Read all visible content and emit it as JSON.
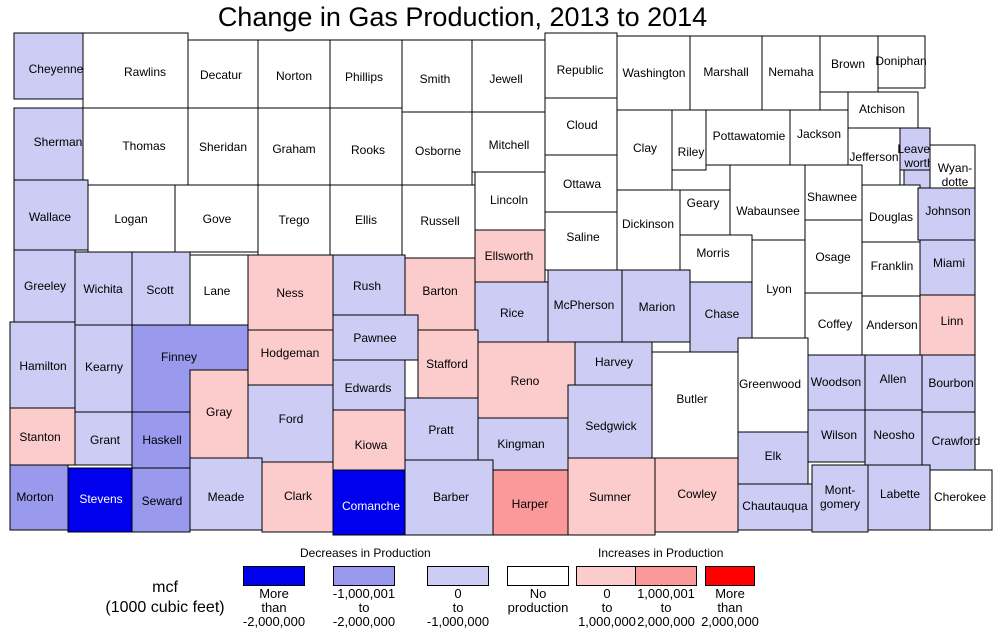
{
  "title": "Change in Gas Production, 2013 to 2014",
  "legend": {
    "decreases_heading": "Decreases in Production",
    "increases_heading": "Increases in Production",
    "unit_line1": "mcf",
    "unit_line2": "(1000 cubic feet)",
    "categories": [
      {
        "key": "dec_large",
        "color": "#0000ee",
        "lines": [
          "More",
          "than",
          "-2,000,000"
        ]
      },
      {
        "key": "dec_mid",
        "color": "#9999ee",
        "lines": [
          "-1,000,001",
          "to",
          "-2,000,000"
        ]
      },
      {
        "key": "dec_small",
        "color": "#ccccf4",
        "lines": [
          "0",
          "to",
          "-1,000,000"
        ]
      },
      {
        "key": "none",
        "color": "#ffffff",
        "lines": [
          "No",
          "production"
        ]
      },
      {
        "key": "inc_small",
        "color": "#fccccc",
        "lines": [
          "0",
          "to",
          "1,000,000"
        ]
      },
      {
        "key": "inc_mid",
        "color": "#f99999",
        "lines": [
          "1,000,001",
          "to",
          "2,000,000"
        ]
      },
      {
        "key": "inc_large",
        "color": "#ff0000",
        "lines": [
          "More",
          "than",
          "2,000,000"
        ]
      }
    ]
  },
  "counties": [
    {
      "name": "Cheyenne",
      "category": "dec_small"
    },
    {
      "name": "Rawlins",
      "category": "none"
    },
    {
      "name": "Decatur",
      "category": "none"
    },
    {
      "name": "Norton",
      "category": "none"
    },
    {
      "name": "Phillips",
      "category": "none"
    },
    {
      "name": "Smith",
      "category": "none"
    },
    {
      "name": "Jewell",
      "category": "none"
    },
    {
      "name": "Republic",
      "category": "none"
    },
    {
      "name": "Washington",
      "category": "none"
    },
    {
      "name": "Marshall",
      "category": "none"
    },
    {
      "name": "Nemaha",
      "category": "none"
    },
    {
      "name": "Brown",
      "category": "none"
    },
    {
      "name": "Doniphan",
      "category": "none"
    },
    {
      "name": "Sherman",
      "category": "dec_small"
    },
    {
      "name": "Thomas",
      "category": "none"
    },
    {
      "name": "Sheridan",
      "category": "none"
    },
    {
      "name": "Graham",
      "category": "none"
    },
    {
      "name": "Rooks",
      "category": "none"
    },
    {
      "name": "Osborne",
      "category": "none"
    },
    {
      "name": "Mitchell",
      "category": "none"
    },
    {
      "name": "Cloud",
      "category": "none"
    },
    {
      "name": "Clay",
      "category": "none"
    },
    {
      "name": "Riley",
      "category": "none"
    },
    {
      "name": "Pottawatomie",
      "category": "none"
    },
    {
      "name": "Jackson",
      "category": "none"
    },
    {
      "name": "Atchison",
      "category": "none"
    },
    {
      "name": "Jefferson",
      "category": "none"
    },
    {
      "name": "Leaven-worth",
      "lines": [
        "Leaven-",
        "worth"
      ],
      "category": "dec_small"
    },
    {
      "name": "Wyan-dotte",
      "lines": [
        "Wyan-",
        "dotte"
      ],
      "category": "none"
    },
    {
      "name": "Wallace",
      "category": "dec_small"
    },
    {
      "name": "Logan",
      "category": "none"
    },
    {
      "name": "Gove",
      "category": "none"
    },
    {
      "name": "Trego",
      "category": "none"
    },
    {
      "name": "Ellis",
      "category": "none"
    },
    {
      "name": "Russell",
      "category": "none"
    },
    {
      "name": "Lincoln",
      "category": "none"
    },
    {
      "name": "Ottawa",
      "category": "none"
    },
    {
      "name": "Dickinson",
      "category": "none"
    },
    {
      "name": "Geary",
      "category": "none"
    },
    {
      "name": "Wabaunsee",
      "category": "none"
    },
    {
      "name": "Shawnee",
      "category": "none"
    },
    {
      "name": "Douglas",
      "category": "none"
    },
    {
      "name": "Johnson",
      "category": "dec_small"
    },
    {
      "name": "Saline",
      "category": "none"
    },
    {
      "name": "Ellsworth",
      "category": "inc_small"
    },
    {
      "name": "Morris",
      "category": "none"
    },
    {
      "name": "Greeley",
      "category": "dec_small"
    },
    {
      "name": "Wichita",
      "category": "dec_small"
    },
    {
      "name": "Scott",
      "category": "dec_small"
    },
    {
      "name": "Lane",
      "category": "none"
    },
    {
      "name": "Ness",
      "category": "inc_small"
    },
    {
      "name": "Rush",
      "category": "dec_small"
    },
    {
      "name": "Barton",
      "category": "inc_small"
    },
    {
      "name": "Rice",
      "category": "dec_small"
    },
    {
      "name": "McPherson",
      "category": "dec_small"
    },
    {
      "name": "Marion",
      "category": "dec_small"
    },
    {
      "name": "Chase",
      "category": "dec_small"
    },
    {
      "name": "Lyon",
      "category": "none"
    },
    {
      "name": "Osage",
      "category": "none"
    },
    {
      "name": "Franklin",
      "category": "none"
    },
    {
      "name": "Miami",
      "category": "dec_small"
    },
    {
      "name": "Coffey",
      "category": "none"
    },
    {
      "name": "Anderson",
      "category": "none"
    },
    {
      "name": "Linn",
      "category": "inc_small"
    },
    {
      "name": "Hamilton",
      "category": "dec_small"
    },
    {
      "name": "Kearny",
      "category": "dec_small"
    },
    {
      "name": "Finney",
      "category": "dec_mid"
    },
    {
      "name": "Hodgeman",
      "category": "inc_small"
    },
    {
      "name": "Pawnee",
      "category": "dec_small"
    },
    {
      "name": "Edwards",
      "category": "dec_small"
    },
    {
      "name": "Stafford",
      "category": "inc_small"
    },
    {
      "name": "Reno",
      "category": "inc_small"
    },
    {
      "name": "Harvey",
      "category": "dec_small"
    },
    {
      "name": "Butler",
      "category": "none"
    },
    {
      "name": "Greenwood",
      "category": "none"
    },
    {
      "name": "Woodson",
      "category": "dec_small"
    },
    {
      "name": "Allen",
      "category": "dec_small"
    },
    {
      "name": "Bourbon",
      "category": "dec_small"
    },
    {
      "name": "Gray",
      "category": "inc_small"
    },
    {
      "name": "Ford",
      "category": "dec_small"
    },
    {
      "name": "Stanton",
      "category": "inc_small"
    },
    {
      "name": "Grant",
      "category": "dec_small"
    },
    {
      "name": "Haskell",
      "category": "dec_mid"
    },
    {
      "name": "Kiowa",
      "category": "inc_small"
    },
    {
      "name": "Pratt",
      "category": "dec_small"
    },
    {
      "name": "Kingman",
      "category": "dec_small"
    },
    {
      "name": "Sedgwick",
      "category": "dec_small"
    },
    {
      "name": "Wilson",
      "category": "dec_small"
    },
    {
      "name": "Neosho",
      "category": "dec_small"
    },
    {
      "name": "Crawford",
      "category": "dec_small"
    },
    {
      "name": "Elk",
      "category": "dec_small"
    },
    {
      "name": "Morton",
      "category": "dec_mid"
    },
    {
      "name": "Stevens",
      "category": "dec_large"
    },
    {
      "name": "Seward",
      "category": "dec_mid"
    },
    {
      "name": "Meade",
      "category": "dec_small"
    },
    {
      "name": "Clark",
      "category": "inc_small"
    },
    {
      "name": "Comanche",
      "category": "dec_large"
    },
    {
      "name": "Barber",
      "category": "dec_small"
    },
    {
      "name": "Harper",
      "category": "inc_mid"
    },
    {
      "name": "Sumner",
      "category": "inc_small"
    },
    {
      "name": "Cowley",
      "category": "inc_small"
    },
    {
      "name": "Chautauqua",
      "category": "dec_small"
    },
    {
      "name": "Mont-gomery",
      "lines": [
        "Mont-",
        "gomery"
      ],
      "category": "dec_small"
    },
    {
      "name": "Labette",
      "category": "dec_small"
    },
    {
      "name": "Cherokee",
      "category": "none"
    }
  ]
}
